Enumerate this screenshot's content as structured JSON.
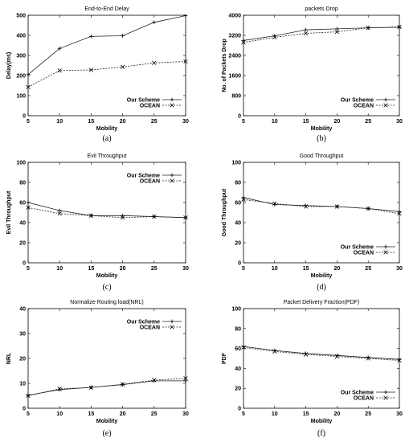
{
  "chart_data": [
    {
      "type": "line",
      "title": "End-to-End Delay",
      "caption": "(a)",
      "xlabel": "Mobility",
      "ylabel": "Delay(ms)",
      "x": [
        5,
        10,
        15,
        20,
        25,
        30
      ],
      "xlim": [
        5,
        30
      ],
      "ylim": [
        0,
        500
      ],
      "yticks": [
        0,
        100,
        200,
        300,
        400,
        500
      ],
      "legend_position": "bottom-right",
      "series": [
        {
          "name": "Our Scheme",
          "marker": "plus",
          "dash": "solid",
          "values": [
            205,
            335,
            395,
            398,
            465,
            498
          ]
        },
        {
          "name": "OCEAN",
          "marker": "x",
          "dash": "dashed",
          "values": [
            143,
            225,
            228,
            243,
            263,
            270
          ]
        }
      ]
    },
    {
      "type": "line",
      "title": "packets Drop",
      "caption": "(b)",
      "xlabel": "Mobility",
      "ylabel": "No. of Packets Drop",
      "x": [
        5,
        10,
        15,
        20,
        25,
        30
      ],
      "xlim": [
        5,
        30
      ],
      "ylim": [
        0,
        4000
      ],
      "yticks": [
        0,
        800,
        1600,
        2400,
        3200,
        4000
      ],
      "legend_position": "bottom-right",
      "series": [
        {
          "name": "Our Scheme",
          "marker": "plus",
          "dash": "solid",
          "values": [
            3000,
            3180,
            3420,
            3460,
            3500,
            3520
          ]
        },
        {
          "name": "OCEAN",
          "marker": "x",
          "dash": "dashed",
          "values": [
            2920,
            3120,
            3280,
            3340,
            3500,
            3540
          ]
        }
      ]
    },
    {
      "type": "line",
      "title": "Evil Throughput",
      "caption": "(c)",
      "xlabel": "Mobility",
      "ylabel": "Evil Throughput",
      "x": [
        5,
        10,
        15,
        20,
        25,
        30
      ],
      "xlim": [
        5,
        30
      ],
      "ylim": [
        0,
        100
      ],
      "yticks": [
        0,
        20,
        40,
        60,
        80,
        100
      ],
      "legend_position": "top-right",
      "series": [
        {
          "name": "Our Scheme",
          "marker": "plus",
          "dash": "solid",
          "values": [
            60,
            52,
            47,
            47,
            46,
            45
          ]
        },
        {
          "name": "OCEAN",
          "marker": "x",
          "dash": "dashed",
          "values": [
            55,
            49,
            47,
            45,
            46,
            45
          ]
        }
      ]
    },
    {
      "type": "line",
      "title": "Good Throughput",
      "caption": "(d)",
      "xlabel": "Mobility",
      "ylabel": "Good Throughput",
      "x": [
        5,
        10,
        15,
        20,
        25,
        30
      ],
      "xlim": [
        5,
        30
      ],
      "ylim": [
        0,
        100
      ],
      "yticks": [
        0,
        20,
        40,
        60,
        80,
        100
      ],
      "legend_position": "bottom-right",
      "series": [
        {
          "name": "Our Scheme",
          "marker": "plus",
          "dash": "solid",
          "values": [
            65,
            58,
            57,
            56,
            54,
            51
          ]
        },
        {
          "name": "OCEAN",
          "marker": "x",
          "dash": "dashed",
          "values": [
            63,
            59,
            56,
            56,
            54,
            49
          ]
        }
      ]
    },
    {
      "type": "line",
      "title": "Normalize Routing load(NRL)",
      "caption": "(e)",
      "xlabel": "Mobility",
      "ylabel": "NRL",
      "x": [
        5,
        10,
        15,
        20,
        25,
        30
      ],
      "xlim": [
        5,
        30
      ],
      "ylim": [
        0,
        40
      ],
      "yticks": [
        0,
        10,
        20,
        30,
        40
      ],
      "legend_position": "top-right",
      "series": [
        {
          "name": "Our Scheme",
          "marker": "plus",
          "dash": "solid",
          "values": [
            5.2,
            7.5,
            8.4,
            9.5,
            11.0,
            11.0
          ]
        },
        {
          "name": "OCEAN",
          "marker": "x",
          "dash": "dashed",
          "values": [
            5.0,
            7.8,
            8.3,
            9.6,
            11.3,
            12.0
          ]
        }
      ]
    },
    {
      "type": "line",
      "title": "Packet Delivery Fraction(PDF)",
      "caption": "(f)",
      "xlabel": "Mobility",
      "ylabel": "PDF",
      "x": [
        5,
        10,
        15,
        20,
        25,
        30
      ],
      "xlim": [
        5,
        30
      ],
      "ylim": [
        0,
        100
      ],
      "yticks": [
        0,
        20,
        40,
        60,
        80,
        100
      ],
      "legend_position": "bottom-right",
      "series": [
        {
          "name": "Our Scheme",
          "marker": "plus",
          "dash": "solid",
          "values": [
            62,
            58,
            55,
            53,
            51,
            49
          ]
        },
        {
          "name": "OCEAN",
          "marker": "x",
          "dash": "dashed",
          "values": [
            61,
            57,
            54,
            52,
            50,
            48
          ]
        }
      ]
    }
  ]
}
